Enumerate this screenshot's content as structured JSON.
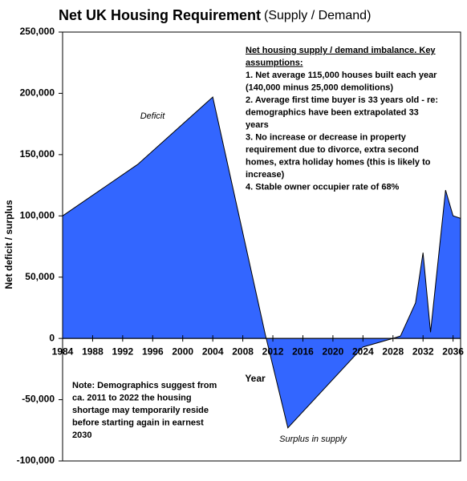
{
  "chart_data": {
    "type": "area",
    "title": "Net UK Housing Requirement",
    "subtitle": "(Supply / Demand)",
    "x_label": "Year",
    "y_label": "Net deficit / surplus",
    "x": [
      1984,
      1994,
      2004,
      2011,
      2014,
      2024,
      2028,
      2029,
      2031,
      2032,
      2033,
      2035,
      2036,
      2037
    ],
    "values": [
      100000,
      142000,
      197000,
      3000,
      -73000,
      -7000,
      0,
      2000,
      29000,
      70000,
      5000,
      121000,
      100000,
      98000
    ],
    "color": "#3366ff",
    "xlim": [
      1984,
      2037
    ],
    "xticks": [
      1984,
      1988,
      1992,
      1996,
      2000,
      2004,
      2008,
      2012,
      2016,
      2020,
      2024,
      2028,
      2032,
      2036
    ],
    "ylim": [
      -100000,
      250000
    ],
    "yticks": [
      {
        "value": -100000,
        "label": "-100,000"
      },
      {
        "value": -50000,
        "label": "-50,000"
      },
      0,
      {
        "value": 50000,
        "label": "50,000"
      },
      {
        "value": 100000,
        "label": "100,000"
      },
      {
        "value": 150000,
        "label": "150,000"
      },
      {
        "value": 200000,
        "label": "200,000"
      },
      {
        "value": 250000,
        "label": "250,000"
      }
    ],
    "annotations": [
      "Deficit",
      "Surplus in supply"
    ],
    "assumptions": {
      "heading": [
        "Net housing supply / demand imbalance. Key",
        "assumptions:"
      ],
      "lines": [
        "1.  Net average 115,000 houses built each year",
        "(140,000 minus 25,000 demolitions)",
        "2.  Average first time buyer is 33 years old - re:",
        "demographics have been extrapolated 33",
        "years",
        "3.  No increase or decrease in property",
        "requirement due to divorce, extra second",
        "homes, extra holiday homes (this is likely to",
        "increase)",
        "4.  Stable owner occupier rate of 68%"
      ]
    },
    "note": [
      "Note: Demographics suggest from",
      "ca. 2011 to 2022 the housing",
      "shortage may temporarily reside",
      "before starting again in earnest",
      "2030"
    ]
  }
}
